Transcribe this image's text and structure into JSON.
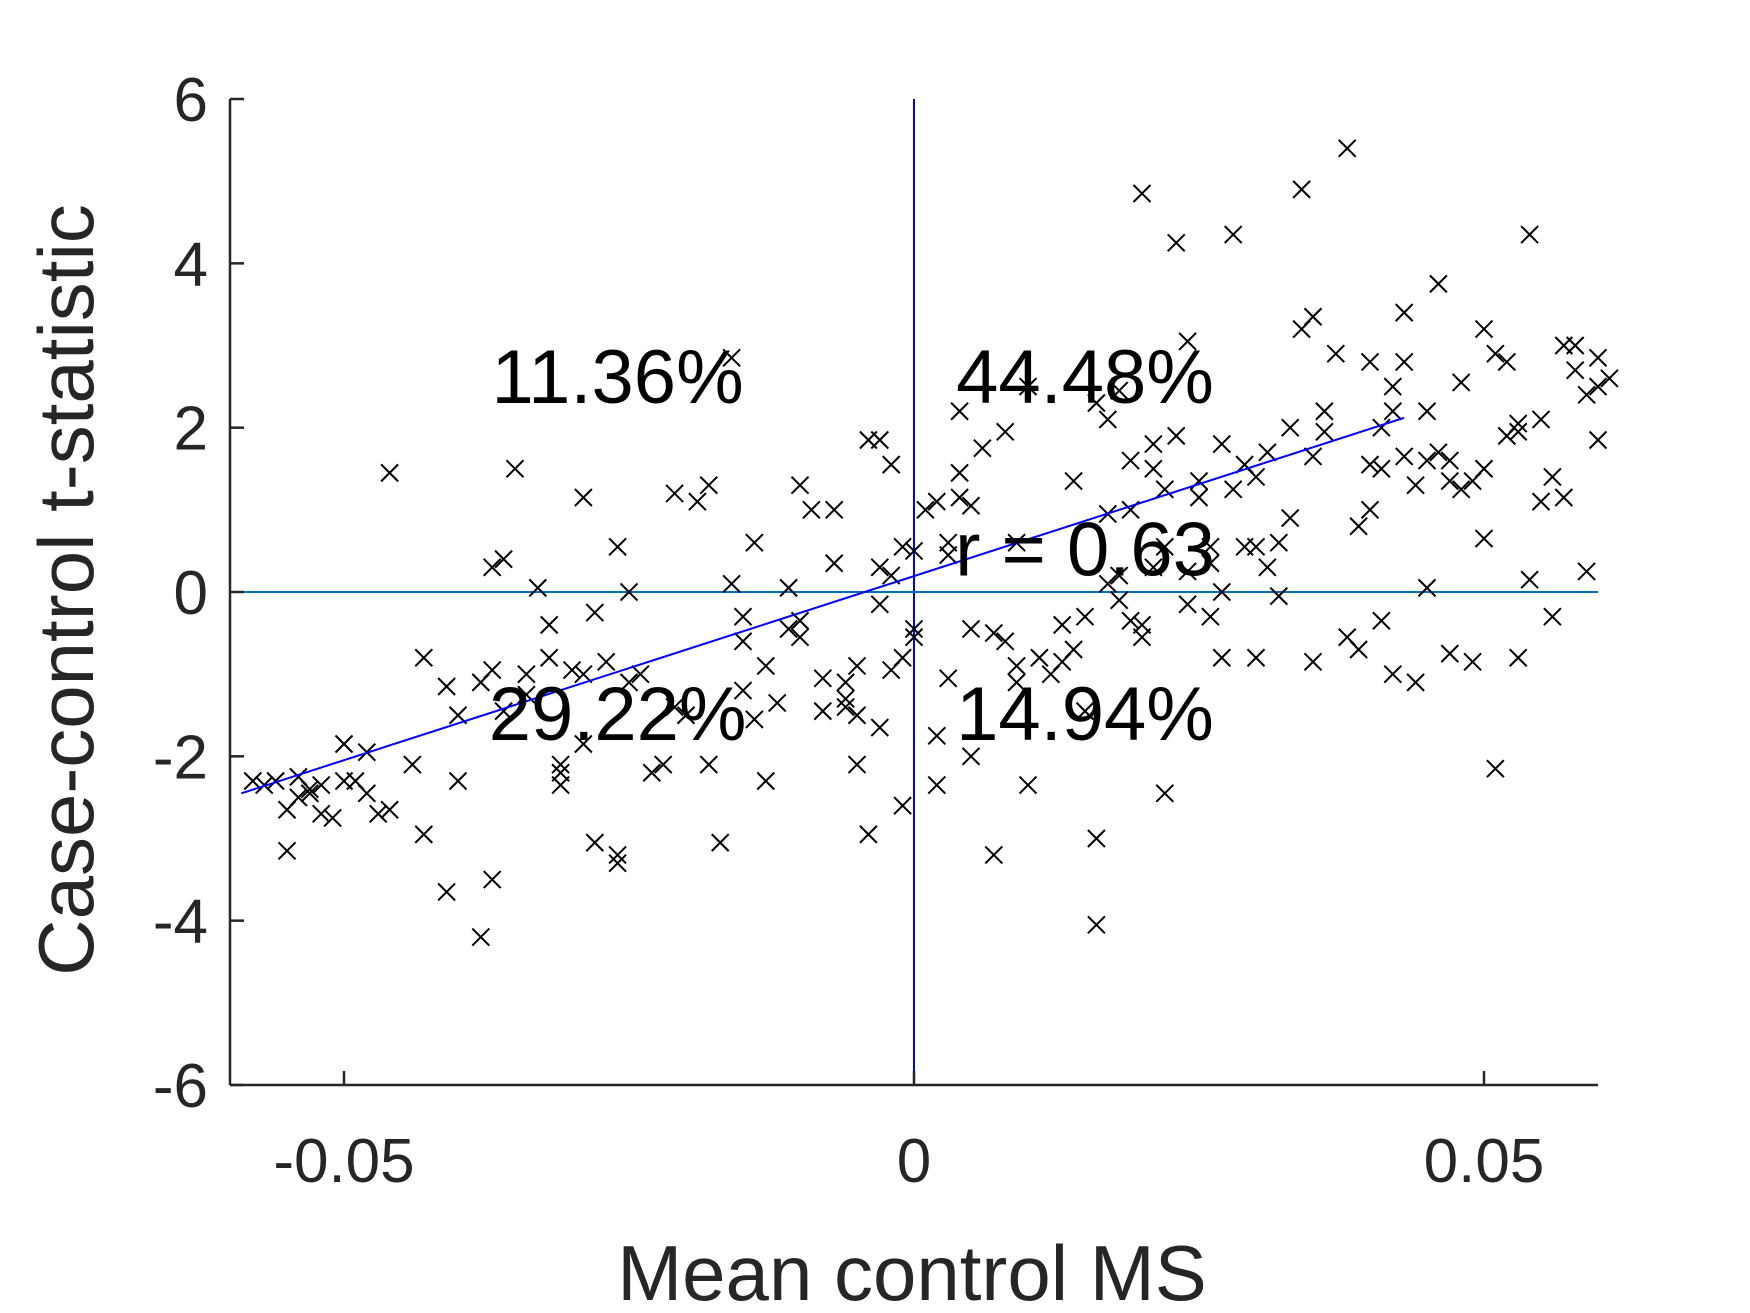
{
  "chart_data": {
    "type": "scatter",
    "title": "",
    "xlabel": "Mean control MS",
    "ylabel": "Case-control t-statistic",
    "xlim": [
      -0.06,
      0.06
    ],
    "ylim": [
      -6,
      6
    ],
    "xticks": [
      -0.05,
      0,
      0.05
    ],
    "xtick_labels": [
      "-0.05",
      "0",
      "0.05"
    ],
    "yticks": [
      -6,
      -4,
      -2,
      0,
      2,
      4,
      6
    ],
    "ytick_labels": [
      "-6",
      "-4",
      "-2",
      "0",
      "2",
      "4",
      "6"
    ],
    "grid": false,
    "legend": "none",
    "marker": "x",
    "colors": {
      "points": "#000000",
      "fit_line": "#0000ff",
      "vertical_reference": "#0000ff",
      "horizontal_reference": "#0072bd",
      "axes": "#262626"
    },
    "reference_lines": [
      {
        "orientation": "vertical",
        "x": 0
      },
      {
        "orientation": "horizontal",
        "y": 0
      }
    ],
    "fit_line": {
      "x": [
        -0.059,
        0.043
      ],
      "y": [
        -2.45,
        2.12
      ]
    },
    "annotations": [
      {
        "text": "11.36%",
        "x": -0.026,
        "y": 2.3
      },
      {
        "text": "44.48%",
        "x": 0.015,
        "y": 2.3
      },
      {
        "text": "r = 0.63",
        "x": 0.015,
        "y": 0.2
      },
      {
        "text": "29.22%",
        "x": -0.026,
        "y": -1.8
      },
      {
        "text": "14.94%",
        "x": 0.015,
        "y": -1.8
      }
    ],
    "points": [
      [
        -0.058,
        -2.3
      ],
      [
        -0.057,
        -2.35
      ],
      [
        -0.056,
        -2.3
      ],
      [
        -0.055,
        -2.65
      ],
      [
        -0.055,
        -3.15
      ],
      [
        -0.054,
        -2.5
      ],
      [
        -0.054,
        -2.25
      ],
      [
        -0.053,
        -2.4
      ],
      [
        -0.053,
        -2.45
      ],
      [
        -0.052,
        -2.35
      ],
      [
        -0.052,
        -2.7
      ],
      [
        -0.051,
        -2.75
      ],
      [
        -0.05,
        -2.3
      ],
      [
        -0.05,
        -1.85
      ],
      [
        -0.049,
        -2.3
      ],
      [
        -0.048,
        -1.95
      ],
      [
        -0.047,
        -2.7
      ],
      [
        -0.046,
        -2.65
      ],
      [
        -0.048,
        -2.45
      ],
      [
        -0.044,
        -2.1
      ],
      [
        -0.046,
        1.45
      ],
      [
        -0.043,
        -0.8
      ],
      [
        -0.043,
        -2.95
      ],
      [
        -0.041,
        -1.15
      ],
      [
        -0.041,
        -3.65
      ],
      [
        -0.04,
        -1.5
      ],
      [
        -0.04,
        -2.3
      ],
      [
        -0.038,
        -1.1
      ],
      [
        -0.038,
        -4.2
      ],
      [
        -0.037,
        -3.5
      ],
      [
        -0.037,
        -0.95
      ],
      [
        -0.037,
        0.3
      ],
      [
        -0.036,
        0.4
      ],
      [
        -0.036,
        -1.45
      ],
      [
        -0.035,
        1.5
      ],
      [
        -0.034,
        -1.25
      ],
      [
        -0.034,
        -1.0
      ],
      [
        -0.033,
        0.05
      ],
      [
        -0.032,
        -0.4
      ],
      [
        -0.032,
        -0.8
      ],
      [
        -0.031,
        -2.1
      ],
      [
        -0.031,
        -2.2
      ],
      [
        -0.031,
        -2.35
      ],
      [
        -0.03,
        -0.95
      ],
      [
        -0.029,
        -1.0
      ],
      [
        -0.029,
        1.15
      ],
      [
        -0.029,
        -1.85
      ],
      [
        -0.028,
        -0.25
      ],
      [
        -0.028,
        -3.05
      ],
      [
        -0.027,
        -0.85
      ],
      [
        -0.026,
        -3.2
      ],
      [
        -0.026,
        -3.3
      ],
      [
        -0.026,
        0.55
      ],
      [
        -0.025,
        0.0
      ],
      [
        -0.025,
        -1.1
      ],
      [
        -0.024,
        -1.0
      ],
      [
        -0.023,
        -2.2
      ],
      [
        -0.022,
        -2.1
      ],
      [
        -0.021,
        -1.4
      ],
      [
        -0.021,
        1.2
      ],
      [
        -0.02,
        -1.5
      ],
      [
        -0.019,
        1.1
      ],
      [
        -0.018,
        1.3
      ],
      [
        -0.018,
        -2.1
      ],
      [
        -0.017,
        -3.05
      ],
      [
        -0.016,
        0.1
      ],
      [
        -0.016,
        2.85
      ],
      [
        -0.015,
        -0.3
      ],
      [
        -0.015,
        -0.6
      ],
      [
        -0.015,
        -1.2
      ],
      [
        -0.014,
        0.6
      ],
      [
        -0.014,
        -1.55
      ],
      [
        -0.013,
        -2.3
      ],
      [
        -0.013,
        -0.9
      ],
      [
        -0.012,
        -1.35
      ],
      [
        -0.011,
        -0.45
      ],
      [
        -0.011,
        0.05
      ],
      [
        -0.01,
        -0.35
      ],
      [
        -0.01,
        1.3
      ],
      [
        -0.01,
        -0.55
      ],
      [
        -0.009,
        1.0
      ],
      [
        -0.008,
        -1.05
      ],
      [
        -0.008,
        -1.45
      ],
      [
        -0.007,
        0.35
      ],
      [
        -0.007,
        1.0
      ],
      [
        -0.006,
        -1.1
      ],
      [
        -0.006,
        -1.3
      ],
      [
        -0.006,
        -1.4
      ],
      [
        -0.005,
        -1.5
      ],
      [
        -0.005,
        -2.1
      ],
      [
        -0.005,
        -0.9
      ],
      [
        -0.004,
        -2.95
      ],
      [
        -0.004,
        1.85
      ],
      [
        -0.003,
        1.85
      ],
      [
        -0.003,
        0.3
      ],
      [
        -0.003,
        -0.15
      ],
      [
        -0.002,
        0.2
      ],
      [
        -0.002,
        -0.95
      ],
      [
        -0.001,
        -2.6
      ],
      [
        -0.001,
        0.55
      ],
      [
        0.0,
        0.5
      ],
      [
        0.0,
        -0.55
      ],
      [
        0.0,
        -0.45
      ],
      [
        -0.001,
        -0.8
      ],
      [
        -0.002,
        1.55
      ],
      [
        -0.003,
        -1.65
      ],
      [
        0.002,
        -2.35
      ],
      [
        0.002,
        1.1
      ],
      [
        0.001,
        1.0
      ],
      [
        0.002,
        -1.75
      ],
      [
        0.003,
        -1.05
      ],
      [
        0.003,
        0.45
      ],
      [
        0.003,
        0.6
      ],
      [
        0.004,
        2.2
      ],
      [
        0.004,
        1.45
      ],
      [
        0.004,
        1.15
      ],
      [
        0.005,
        1.05
      ],
      [
        0.005,
        -0.45
      ],
      [
        0.005,
        -2.0
      ],
      [
        0.006,
        1.75
      ],
      [
        0.007,
        -3.2
      ],
      [
        0.007,
        -0.5
      ],
      [
        0.008,
        1.95
      ],
      [
        0.008,
        -0.6
      ],
      [
        0.009,
        -0.9
      ],
      [
        0.009,
        0.6
      ],
      [
        0.009,
        -1.1
      ],
      [
        0.01,
        2.5
      ],
      [
        0.01,
        -2.35
      ],
      [
        0.011,
        -0.8
      ],
      [
        0.012,
        -1.0
      ],
      [
        0.013,
        -0.85
      ],
      [
        0.013,
        -0.4
      ],
      [
        0.014,
        1.35
      ],
      [
        0.014,
        -0.7
      ],
      [
        0.015,
        -1.45
      ],
      [
        0.015,
        -0.3
      ],
      [
        0.016,
        -3.0
      ],
      [
        0.016,
        -4.05
      ],
      [
        0.016,
        2.3
      ],
      [
        0.017,
        0.1
      ],
      [
        0.017,
        2.1
      ],
      [
        0.017,
        0.95
      ],
      [
        0.018,
        2.45
      ],
      [
        0.018,
        -0.1
      ],
      [
        0.018,
        0.2
      ],
      [
        0.019,
        1.6
      ],
      [
        0.019,
        -0.35
      ],
      [
        0.019,
        1.0
      ],
      [
        0.02,
        -0.55
      ],
      [
        0.02,
        -0.4
      ],
      [
        0.02,
        4.85
      ],
      [
        0.021,
        0.3
      ],
      [
        0.021,
        1.8
      ],
      [
        0.021,
        1.5
      ],
      [
        0.022,
        -2.45
      ],
      [
        0.022,
        1.25
      ],
      [
        0.022,
        0.55
      ],
      [
        0.023,
        4.25
      ],
      [
        0.023,
        1.9
      ],
      [
        0.024,
        3.05
      ],
      [
        0.024,
        0.25
      ],
      [
        0.024,
        -0.15
      ],
      [
        0.025,
        1.15
      ],
      [
        0.025,
        1.35
      ],
      [
        0.026,
        0.55
      ],
      [
        0.026,
        0.35
      ],
      [
        0.026,
        -0.3
      ],
      [
        0.027,
        1.8
      ],
      [
        0.027,
        0.0
      ],
      [
        0.027,
        -0.8
      ],
      [
        0.028,
        4.35
      ],
      [
        0.028,
        1.25
      ],
      [
        0.029,
        0.55
      ],
      [
        0.029,
        1.55
      ],
      [
        0.03,
        -0.8
      ],
      [
        0.03,
        0.55
      ],
      [
        0.03,
        1.4
      ],
      [
        0.031,
        1.7
      ],
      [
        0.031,
        0.3
      ],
      [
        0.032,
        0.6
      ],
      [
        0.032,
        -0.05
      ],
      [
        0.033,
        2.0
      ],
      [
        0.033,
        0.9
      ],
      [
        0.034,
        4.9
      ],
      [
        0.034,
        3.2
      ],
      [
        0.035,
        -0.85
      ],
      [
        0.035,
        1.65
      ],
      [
        0.035,
        3.35
      ],
      [
        0.036,
        2.2
      ],
      [
        0.036,
        1.95
      ],
      [
        0.037,
        2.9
      ],
      [
        0.038,
        -0.55
      ],
      [
        0.038,
        5.4
      ],
      [
        0.039,
        0.8
      ],
      [
        0.039,
        -0.7
      ],
      [
        0.04,
        1.55
      ],
      [
        0.04,
        2.8
      ],
      [
        0.04,
        1.0
      ],
      [
        0.041,
        -0.35
      ],
      [
        0.041,
        2.0
      ],
      [
        0.041,
        1.5
      ],
      [
        0.042,
        2.5
      ],
      [
        0.042,
        2.2
      ],
      [
        0.042,
        -1.0
      ],
      [
        0.043,
        1.65
      ],
      [
        0.043,
        2.8
      ],
      [
        0.043,
        3.4
      ],
      [
        0.044,
        -1.1
      ],
      [
        0.044,
        1.3
      ],
      [
        0.045,
        1.6
      ],
      [
        0.045,
        0.05
      ],
      [
        0.045,
        2.2
      ],
      [
        0.046,
        3.75
      ],
      [
        0.046,
        1.7
      ],
      [
        0.047,
        1.35
      ],
      [
        0.047,
        -0.75
      ],
      [
        0.047,
        1.6
      ],
      [
        0.048,
        2.55
      ],
      [
        0.048,
        1.25
      ],
      [
        0.049,
        -0.85
      ],
      [
        0.049,
        1.35
      ],
      [
        0.05,
        0.65
      ],
      [
        0.05,
        1.5
      ],
      [
        0.05,
        3.2
      ],
      [
        0.051,
        -2.15
      ],
      [
        0.051,
        2.9
      ],
      [
        0.052,
        1.9
      ],
      [
        0.052,
        2.8
      ],
      [
        0.053,
        1.95
      ],
      [
        0.053,
        -0.8
      ],
      [
        0.053,
        2.05
      ],
      [
        0.054,
        0.15
      ],
      [
        0.054,
        4.35
      ],
      [
        0.055,
        1.1
      ],
      [
        0.055,
        2.1
      ],
      [
        0.056,
        -0.3
      ],
      [
        0.056,
        1.4
      ],
      [
        0.057,
        3.0
      ],
      [
        0.057,
        1.15
      ],
      [
        0.058,
        2.7
      ],
      [
        0.058,
        3.0
      ],
      [
        0.059,
        2.4
      ],
      [
        0.059,
        0.25
      ],
      [
        0.06,
        1.85
      ],
      [
        0.06,
        2.5
      ],
      [
        0.06,
        2.85
      ],
      [
        0.061,
        2.6
      ]
    ]
  }
}
